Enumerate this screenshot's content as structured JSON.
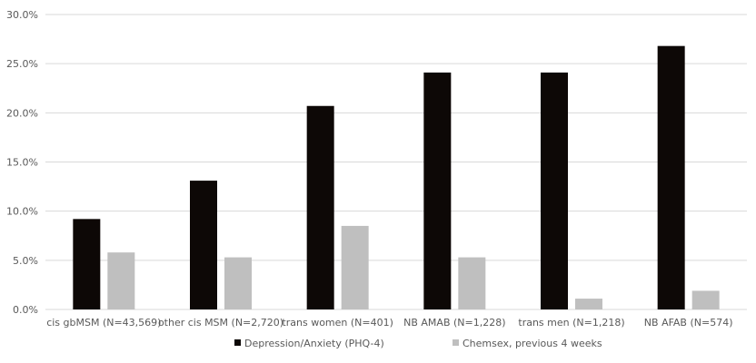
{
  "chart_data": {
    "type": "bar",
    "categories": [
      "cis gbMSM (N=43,569)",
      "other cis MSM (N=2,720)",
      "trans women (N=401)",
      "NB AMAB (N=1,228)",
      "trans men (N=1,218)",
      "NB AFAB (N=574)"
    ],
    "series": [
      {
        "name": "Depression/Anxiety (PHQ-4)",
        "color": "#0d0806",
        "values": [
          9.2,
          13.1,
          20.7,
          24.1,
          24.1,
          26.8
        ]
      },
      {
        "name": "Chemsex, previous 4 weeks",
        "color": "#bfbfbf",
        "values": [
          5.8,
          5.3,
          8.5,
          5.3,
          1.1,
          1.9
        ]
      }
    ],
    "yticks": [
      "0.0%",
      "5.0%",
      "10.0%",
      "15.0%",
      "20.0%",
      "25.0%",
      "30.0%"
    ],
    "ylim": [
      0,
      30
    ],
    "grid": true,
    "legend_position": "bottom",
    "title": "",
    "xlabel": "",
    "ylabel": ""
  }
}
